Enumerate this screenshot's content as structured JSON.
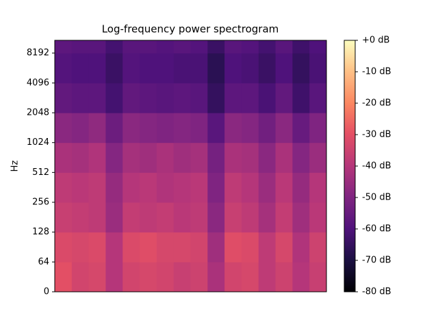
{
  "chart_data": {
    "type": "heatmap",
    "title": "Log-frequency power spectrogram",
    "ylabel": "Hz",
    "yscale": "log",
    "ylim": [
      0,
      11025
    ],
    "yticks": [
      0,
      64,
      128,
      256,
      512,
      1024,
      2048,
      4096,
      8192
    ],
    "y_bins": [
      0,
      64,
      128,
      256,
      512,
      1024,
      2048,
      4096,
      8192,
      11025
    ],
    "colormap": "magma",
    "zlim": [
      -80,
      0
    ],
    "zticks": [
      {
        "value": 0,
        "label": "+0 dB"
      },
      {
        "value": -10,
        "label": "-10 dB"
      },
      {
        "value": -20,
        "label": "-20 dB"
      },
      {
        "value": -30,
        "label": "-30 dB"
      },
      {
        "value": -40,
        "label": "-40 dB"
      },
      {
        "value": -50,
        "label": "-50 dB"
      },
      {
        "value": -60,
        "label": "-60 dB"
      },
      {
        "value": -70,
        "label": "-70 dB"
      },
      {
        "value": -80,
        "label": "-80 dB"
      }
    ],
    "values": [
      [
        -30,
        -34,
        -33,
        -40,
        -34,
        -33,
        -34,
        -36,
        -35,
        -42,
        -34,
        -33,
        -38,
        -35,
        -40,
        -36
      ],
      [
        -32,
        -33,
        -32,
        -40,
        -32,
        -31,
        -33,
        -33,
        -34,
        -44,
        -31,
        -32,
        -38,
        -33,
        -41,
        -35
      ],
      [
        -36,
        -37,
        -38,
        -45,
        -37,
        -38,
        -37,
        -39,
        -38,
        -48,
        -36,
        -38,
        -43,
        -37,
        -44,
        -39
      ],
      [
        -38,
        -39,
        -38,
        -46,
        -40,
        -39,
        -41,
        -40,
        -39,
        -50,
        -38,
        -40,
        -45,
        -39,
        -46,
        -40
      ],
      [
        -42,
        -43,
        -41,
        -49,
        -43,
        -44,
        -42,
        -44,
        -43,
        -52,
        -42,
        -43,
        -48,
        -42,
        -49,
        -45
      ],
      [
        -48,
        -49,
        -47,
        -54,
        -48,
        -49,
        -50,
        -49,
        -50,
        -58,
        -48,
        -49,
        -53,
        -48,
        -55,
        -50
      ],
      [
        -56,
        -57,
        -57,
        -62,
        -56,
        -57,
        -58,
        -57,
        -58,
        -65,
        -57,
        -57,
        -61,
        -56,
        -63,
        -58
      ],
      [
        -59,
        -60,
        -60,
        -64,
        -59,
        -60,
        -60,
        -61,
        -61,
        -67,
        -60,
        -61,
        -64,
        -60,
        -65,
        -61
      ],
      [
        -57,
        -58,
        -58,
        -62,
        -58,
        -58,
        -59,
        -58,
        -59,
        -64,
        -58,
        -59,
        -62,
        -58,
        -63,
        -60
      ]
    ]
  }
}
